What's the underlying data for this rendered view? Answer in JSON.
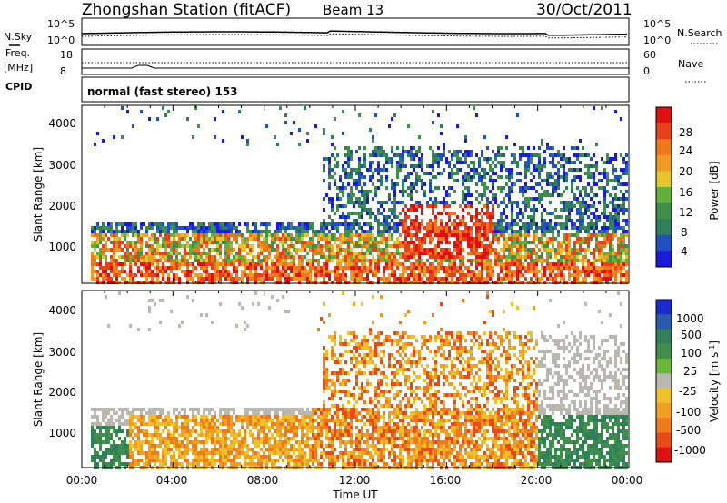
{
  "header": {
    "station": "Zhongshan Station (fitACF)",
    "beam": "Beam 13",
    "date": "30/Oct/2011"
  },
  "noise_panel": {
    "left_label": "N.Sky",
    "right_label": "N.Search",
    "left_ticks": [
      "10^5",
      "10^0"
    ],
    "right_ticks": [
      "10^5",
      "10^0"
    ]
  },
  "freq_panel": {
    "left_label": "Freq.",
    "left_unit": "[MHz]",
    "right_label": "Nave",
    "left_ticks": [
      "18",
      "8"
    ],
    "right_ticks": [
      "60",
      "0"
    ]
  },
  "cpid": {
    "label": "CPID",
    "mode": "normal (fast stereo) 153"
  },
  "chart_data": [
    {
      "type": "heatmap",
      "parameter": "Power",
      "ylabel": "Slant Range [km]",
      "xlabel": "",
      "ylim": [
        180,
        4600
      ],
      "y_ticks": [
        "4000",
        "3000",
        "2000",
        "1000"
      ],
      "colorbar": {
        "label": "Power [dB]",
        "ticks": [
          "28",
          "24",
          "20",
          "16",
          "12",
          "8",
          "4"
        ],
        "colors": [
          "#1a1adc",
          "#1f4fc0",
          "#2f7f5a",
          "#3f8f4a",
          "#62b03a",
          "#e6c52a",
          "#f09a20",
          "#f0761a",
          "#e8401a",
          "#e01010"
        ]
      }
    },
    {
      "type": "heatmap",
      "parameter": "Velocity",
      "ylabel": "Slant Range [km]",
      "xlabel": "Time UT",
      "ylim": [
        180,
        4600
      ],
      "y_ticks": [
        "4000",
        "3000",
        "2000",
        "1000"
      ],
      "x_ticks": [
        "00:00",
        "04:00",
        "08:00",
        "12:00",
        "16:00",
        "20:00",
        "00:00"
      ],
      "colorbar": {
        "label": "Velocity [m s",
        "label_exp": "-1",
        "ticks": [
          "1000",
          "500",
          "100",
          "25",
          "-25",
          "-100",
          "-500",
          "-1000"
        ],
        "colors": [
          "#1a2ad0",
          "#2a5ab0",
          "#2f7f5a",
          "#3f8f4a",
          "#6ab83a",
          "#b8b8b0",
          "#f0c02a",
          "#f0a020",
          "#f07a1a",
          "#e84a1a",
          "#e01010"
        ]
      }
    }
  ]
}
